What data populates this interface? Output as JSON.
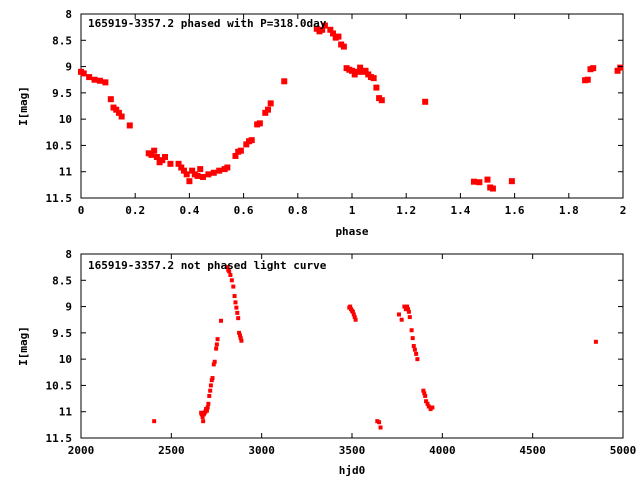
{
  "chart_data": [
    {
      "type": "scatter",
      "title": "165919-3357.2 phased with P=318.0day",
      "xlabel": "phase",
      "ylabel": "I[mag]",
      "xlim": [
        0,
        2
      ],
      "ylim": [
        11.5,
        8
      ],
      "y_inverted": true,
      "xticks": [
        "0",
        "0.2",
        "0.4",
        "0.6",
        "0.8",
        "1",
        "1.2",
        "1.4",
        "1.6",
        "1.8",
        "2"
      ],
      "yticks": [
        "8",
        "8.5",
        "9",
        "9.5",
        "10",
        "10.5",
        "11",
        "11.5"
      ],
      "marker_color": "#ff0000",
      "grid": false,
      "points": [
        [
          0.0,
          9.1
        ],
        [
          0.01,
          9.13
        ],
        [
          0.03,
          9.2
        ],
        [
          0.05,
          9.25
        ],
        [
          0.07,
          9.27
        ],
        [
          0.09,
          9.3
        ],
        [
          0.11,
          9.62
        ],
        [
          0.12,
          9.78
        ],
        [
          0.13,
          9.82
        ],
        [
          0.14,
          9.88
        ],
        [
          0.15,
          9.95
        ],
        [
          0.18,
          10.12
        ],
        [
          0.25,
          10.65
        ],
        [
          0.26,
          10.68
        ],
        [
          0.27,
          10.6
        ],
        [
          0.28,
          10.72
        ],
        [
          0.29,
          10.82
        ],
        [
          0.3,
          10.78
        ],
        [
          0.31,
          10.72
        ],
        [
          0.33,
          10.85
        ],
        [
          0.36,
          10.85
        ],
        [
          0.37,
          10.92
        ],
        [
          0.38,
          10.98
        ],
        [
          0.39,
          11.05
        ],
        [
          0.4,
          11.18
        ],
        [
          0.41,
          10.98
        ],
        [
          0.42,
          11.05
        ],
        [
          0.43,
          11.08
        ],
        [
          0.44,
          10.95
        ],
        [
          0.45,
          11.1
        ],
        [
          0.47,
          11.05
        ],
        [
          0.49,
          11.02
        ],
        [
          0.51,
          10.98
        ],
        [
          0.53,
          10.95
        ],
        [
          0.54,
          10.92
        ],
        [
          0.57,
          10.7
        ],
        [
          0.58,
          10.62
        ],
        [
          0.59,
          10.6
        ],
        [
          0.61,
          10.48
        ],
        [
          0.62,
          10.42
        ],
        [
          0.63,
          10.4
        ],
        [
          0.65,
          10.1
        ],
        [
          0.66,
          10.08
        ],
        [
          0.68,
          9.88
        ],
        [
          0.69,
          9.82
        ],
        [
          0.7,
          9.7
        ],
        [
          0.75,
          9.28
        ],
        [
          0.87,
          8.28
        ],
        [
          0.88,
          8.33
        ],
        [
          0.89,
          8.3
        ],
        [
          0.9,
          8.22
        ],
        [
          0.92,
          8.3
        ],
        [
          0.93,
          8.37
        ],
        [
          0.94,
          8.45
        ],
        [
          0.95,
          8.43
        ],
        [
          0.96,
          8.58
        ],
        [
          0.97,
          8.62
        ],
        [
          0.98,
          9.03
        ],
        [
          0.99,
          9.06
        ],
        [
          1.0,
          9.08
        ],
        [
          1.01,
          9.15
        ],
        [
          1.02,
          9.1
        ],
        [
          1.03,
          9.02
        ],
        [
          1.04,
          9.1
        ],
        [
          1.05,
          9.08
        ],
        [
          1.06,
          9.15
        ],
        [
          1.07,
          9.2
        ],
        [
          1.08,
          9.22
        ],
        [
          1.09,
          9.4
        ],
        [
          1.1,
          9.6
        ],
        [
          1.11,
          9.64
        ],
        [
          1.27,
          9.67
        ],
        [
          1.45,
          11.19
        ],
        [
          1.47,
          11.2
        ],
        [
          1.5,
          11.15
        ],
        [
          1.51,
          11.3
        ],
        [
          1.52,
          11.32
        ],
        [
          1.59,
          11.18
        ],
        [
          1.86,
          9.26
        ],
        [
          1.87,
          9.25
        ],
        [
          1.88,
          9.05
        ],
        [
          1.89,
          9.03
        ],
        [
          1.98,
          9.08
        ],
        [
          1.99,
          9.02
        ]
      ]
    },
    {
      "type": "scatter",
      "title": "165919-3357.2 not phased light curve",
      "xlabel": "hjd0",
      "ylabel": "I[mag]",
      "xlim": [
        2000,
        5000
      ],
      "ylim": [
        11.5,
        8
      ],
      "y_inverted": true,
      "xticks": [
        "2000",
        "2500",
        "3000",
        "3500",
        "4000",
        "4500",
        "5000"
      ],
      "yticks": [
        "8",
        "8.5",
        "9",
        "9.5",
        "10",
        "10.5",
        "11",
        "11.5"
      ],
      "marker_color": "#ff0000",
      "grid": false,
      "points": [
        [
          2405,
          11.18
        ],
        [
          2665,
          11.02
        ],
        [
          2668,
          11.05
        ],
        [
          2673,
          11.1
        ],
        [
          2676,
          11.18
        ],
        [
          2680,
          11.05
        ],
        [
          2684,
          11.02
        ],
        [
          2688,
          11.0
        ],
        [
          2692,
          10.95
        ],
        [
          2697,
          10.98
        ],
        [
          2701,
          10.92
        ],
        [
          2705,
          10.85
        ],
        [
          2710,
          10.7
        ],
        [
          2715,
          10.6
        ],
        [
          2719,
          10.5
        ],
        [
          2724,
          10.4
        ],
        [
          2728,
          10.36
        ],
        [
          2735,
          10.1
        ],
        [
          2740,
          10.05
        ],
        [
          2748,
          9.8
        ],
        [
          2752,
          9.72
        ],
        [
          2756,
          9.62
        ],
        [
          2775,
          9.27
        ],
        [
          2810,
          8.25
        ],
        [
          2815,
          8.3
        ],
        [
          2820,
          8.33
        ],
        [
          2827,
          8.4
        ],
        [
          2835,
          8.5
        ],
        [
          2843,
          8.62
        ],
        [
          2850,
          8.8
        ],
        [
          2855,
          8.92
        ],
        [
          2860,
          9.02
        ],
        [
          2865,
          9.12
        ],
        [
          2870,
          9.22
        ],
        [
          2875,
          9.5
        ],
        [
          2880,
          9.55
        ],
        [
          2884,
          9.6
        ],
        [
          2888,
          9.65
        ],
        [
          3485,
          9.02
        ],
        [
          3490,
          9.0
        ],
        [
          3495,
          9.05
        ],
        [
          3500,
          9.08
        ],
        [
          3505,
          9.1
        ],
        [
          3510,
          9.15
        ],
        [
          3515,
          9.2
        ],
        [
          3520,
          9.25
        ],
        [
          3640,
          11.18
        ],
        [
          3650,
          11.2
        ],
        [
          3658,
          11.3
        ],
        [
          3760,
          9.15
        ],
        [
          3775,
          9.25
        ],
        [
          3790,
          9.0
        ],
        [
          3798,
          9.05
        ],
        [
          3805,
          9.0
        ],
        [
          3810,
          9.05
        ],
        [
          3815,
          9.1
        ],
        [
          3820,
          9.2
        ],
        [
          3830,
          9.45
        ],
        [
          3836,
          9.6
        ],
        [
          3842,
          9.75
        ],
        [
          3848,
          9.82
        ],
        [
          3855,
          9.9
        ],
        [
          3862,
          10.0
        ],
        [
          3895,
          10.6
        ],
        [
          3900,
          10.65
        ],
        [
          3905,
          10.7
        ],
        [
          3910,
          10.8
        ],
        [
          3918,
          10.85
        ],
        [
          3925,
          10.9
        ],
        [
          3935,
          10.95
        ],
        [
          3945,
          10.92
        ],
        [
          4850,
          9.67
        ]
      ]
    }
  ]
}
